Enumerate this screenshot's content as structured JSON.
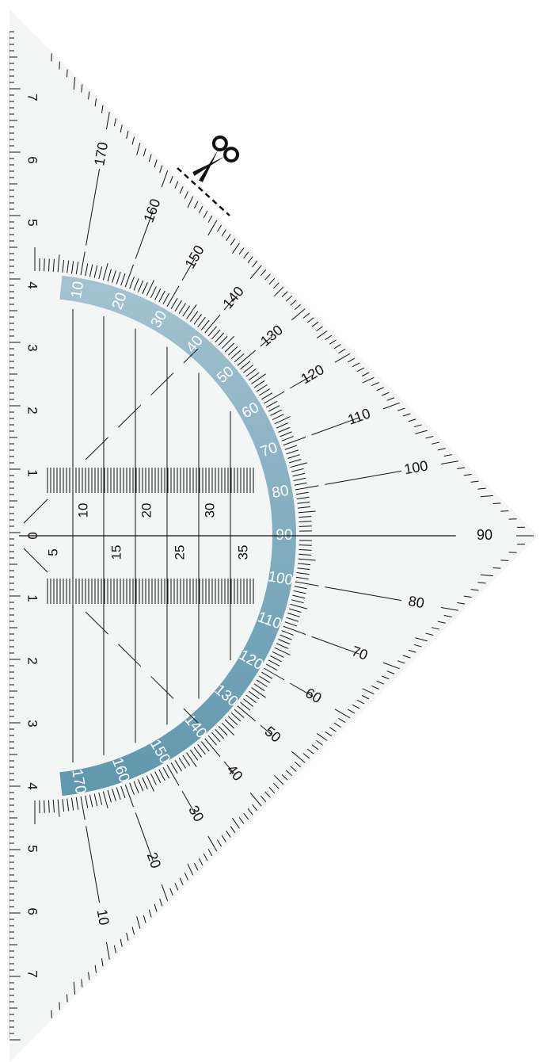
{
  "tool": {
    "outer_scale_labels_upper": [
      "170",
      "160",
      "150",
      "140",
      "130",
      "120",
      "110",
      "100"
    ],
    "outer_scale_label_apex": "90",
    "outer_scale_labels_lower": [
      "80",
      "70",
      "60",
      "50",
      "40",
      "30",
      "20",
      "10"
    ],
    "band_labels": [
      "10",
      "20",
      "30",
      "40",
      "50",
      "60",
      "70",
      "80",
      "90",
      "100",
      "110",
      "120",
      "130",
      "140",
      "150",
      "160",
      "170"
    ],
    "edge_ruler_labels": [
      "7",
      "6",
      "5",
      "4",
      "3",
      "2",
      "1",
      "0",
      "1",
      "2",
      "3",
      "4",
      "5",
      "6",
      "7"
    ],
    "grid_labels_top": [
      "10",
      "20",
      "30"
    ],
    "grid_labels_bottom": [
      "5",
      "15",
      "25",
      "35"
    ],
    "colors": {
      "tool_fill": "#f4f6f6",
      "band_light": "#a4c3d1",
      "band_dark": "#5f97ad",
      "ink": "#111111"
    },
    "icons": [
      "scissors-icon"
    ]
  }
}
